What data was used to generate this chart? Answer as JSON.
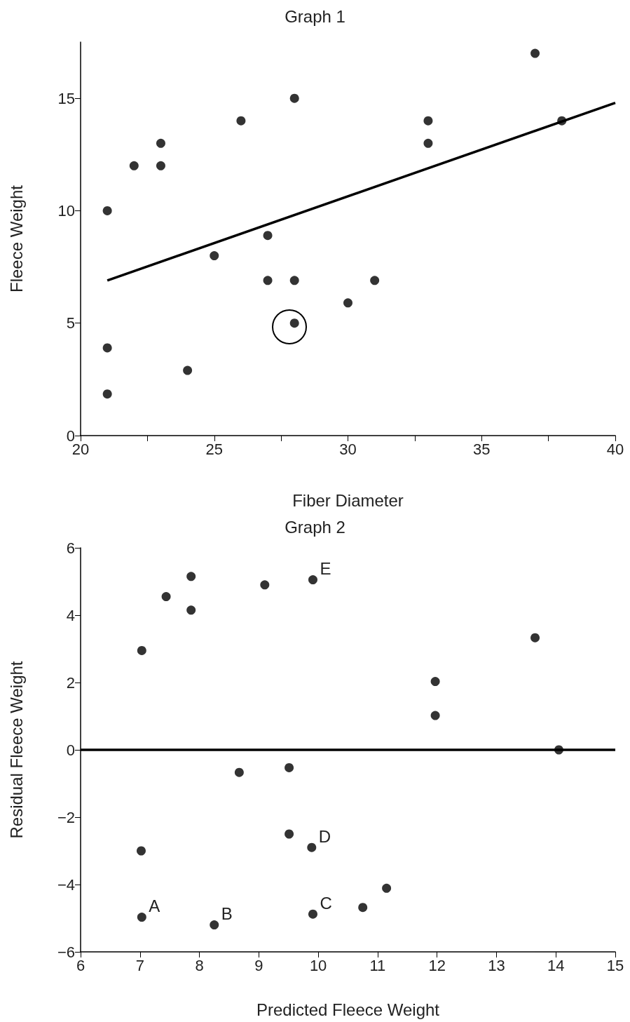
{
  "chart_data": [
    {
      "type": "scatter",
      "title": "Graph 1",
      "xlabel": "Fiber Diameter",
      "ylabel": "Fleece Weight",
      "xlim": [
        20,
        40
      ],
      "ylim": [
        0,
        17.5
      ],
      "xticks": [
        20,
        {
          "value": 22.5,
          "label": null
        },
        25,
        {
          "value": 27.5,
          "label": null
        },
        30,
        {
          "value": 32.5,
          "label": null
        },
        35,
        {
          "value": 37.5,
          "label": null
        },
        40
      ],
      "yticks": [
        0,
        5,
        10,
        15
      ],
      "grid": false,
      "series": [
        {
          "color": "#000000",
          "marker": "circle",
          "x": [
            21,
            21,
            21,
            22,
            23,
            23,
            24,
            25,
            26,
            27,
            27,
            28,
            28,
            28,
            30,
            31,
            33,
            33,
            37,
            38
          ],
          "values": [
            10,
            3.9,
            1.85,
            12,
            13,
            12,
            2.9,
            8,
            14,
            8.9,
            6.9,
            15,
            6.9,
            5,
            5.9,
            6.9,
            14,
            13,
            17,
            14
          ]
        },
        {
          "type": "line",
          "color": "#000000",
          "marker": "none",
          "x": [
            21,
            40
          ],
          "values": [
            6.9,
            14.8
          ]
        }
      ]
    },
    {
      "type": "scatter",
      "title": "Graph 2",
      "xlabel": "Predicted Fleece Weight",
      "ylabel": "Residual Fleece Weight",
      "xlim": [
        6,
        15
      ],
      "ylim": [
        -6,
        6
      ],
      "xticks": [
        6,
        7,
        8,
        9,
        10,
        11,
        12,
        13,
        14,
        15
      ],
      "yticks": [
        {
          "value": -6,
          "label": "−6"
        },
        {
          "value": -4,
          "label": "−4"
        },
        {
          "value": -2,
          "label": "−2"
        },
        0,
        2,
        4,
        6
      ],
      "grid": false,
      "marker": "circle",
      "series": [
        {
          "color": "#000000",
          "x": [
            7.03,
            7.44,
            7.86,
            7.86,
            9.1,
            9.91,
            13.65,
            11.97,
            11.97,
            14.05,
            8.67,
            9.51,
            7.02,
            9.51,
            9.89,
            7.03,
            8.25,
            9.91,
            10.75,
            11.15
          ],
          "values": [
            2.95,
            4.55,
            5.15,
            4.15,
            4.9,
            5.05,
            3.33,
            2.03,
            1.02,
            0,
            -0.67,
            -0.53,
            -3,
            -2.5,
            -2.9,
            -4.97,
            -5.2,
            -4.88,
            -4.68,
            -4.11
          ]
        }
      ],
      "ref_lines": [
        {
          "axis": "y",
          "value": 0,
          "color": "#000000"
        }
      ],
      "annotations": [
        {
          "text": "A",
          "x": 7.03,
          "y": -4.97
        },
        {
          "text": "B",
          "x": 8.25,
          "y": -5.2
        },
        {
          "text": "C",
          "x": 9.91,
          "y": -4.88
        },
        {
          "text": "D",
          "x": 9.89,
          "y": -2.9
        },
        {
          "text": "E",
          "x": 9.91,
          "y": 5.05
        }
      ]
    }
  ]
}
